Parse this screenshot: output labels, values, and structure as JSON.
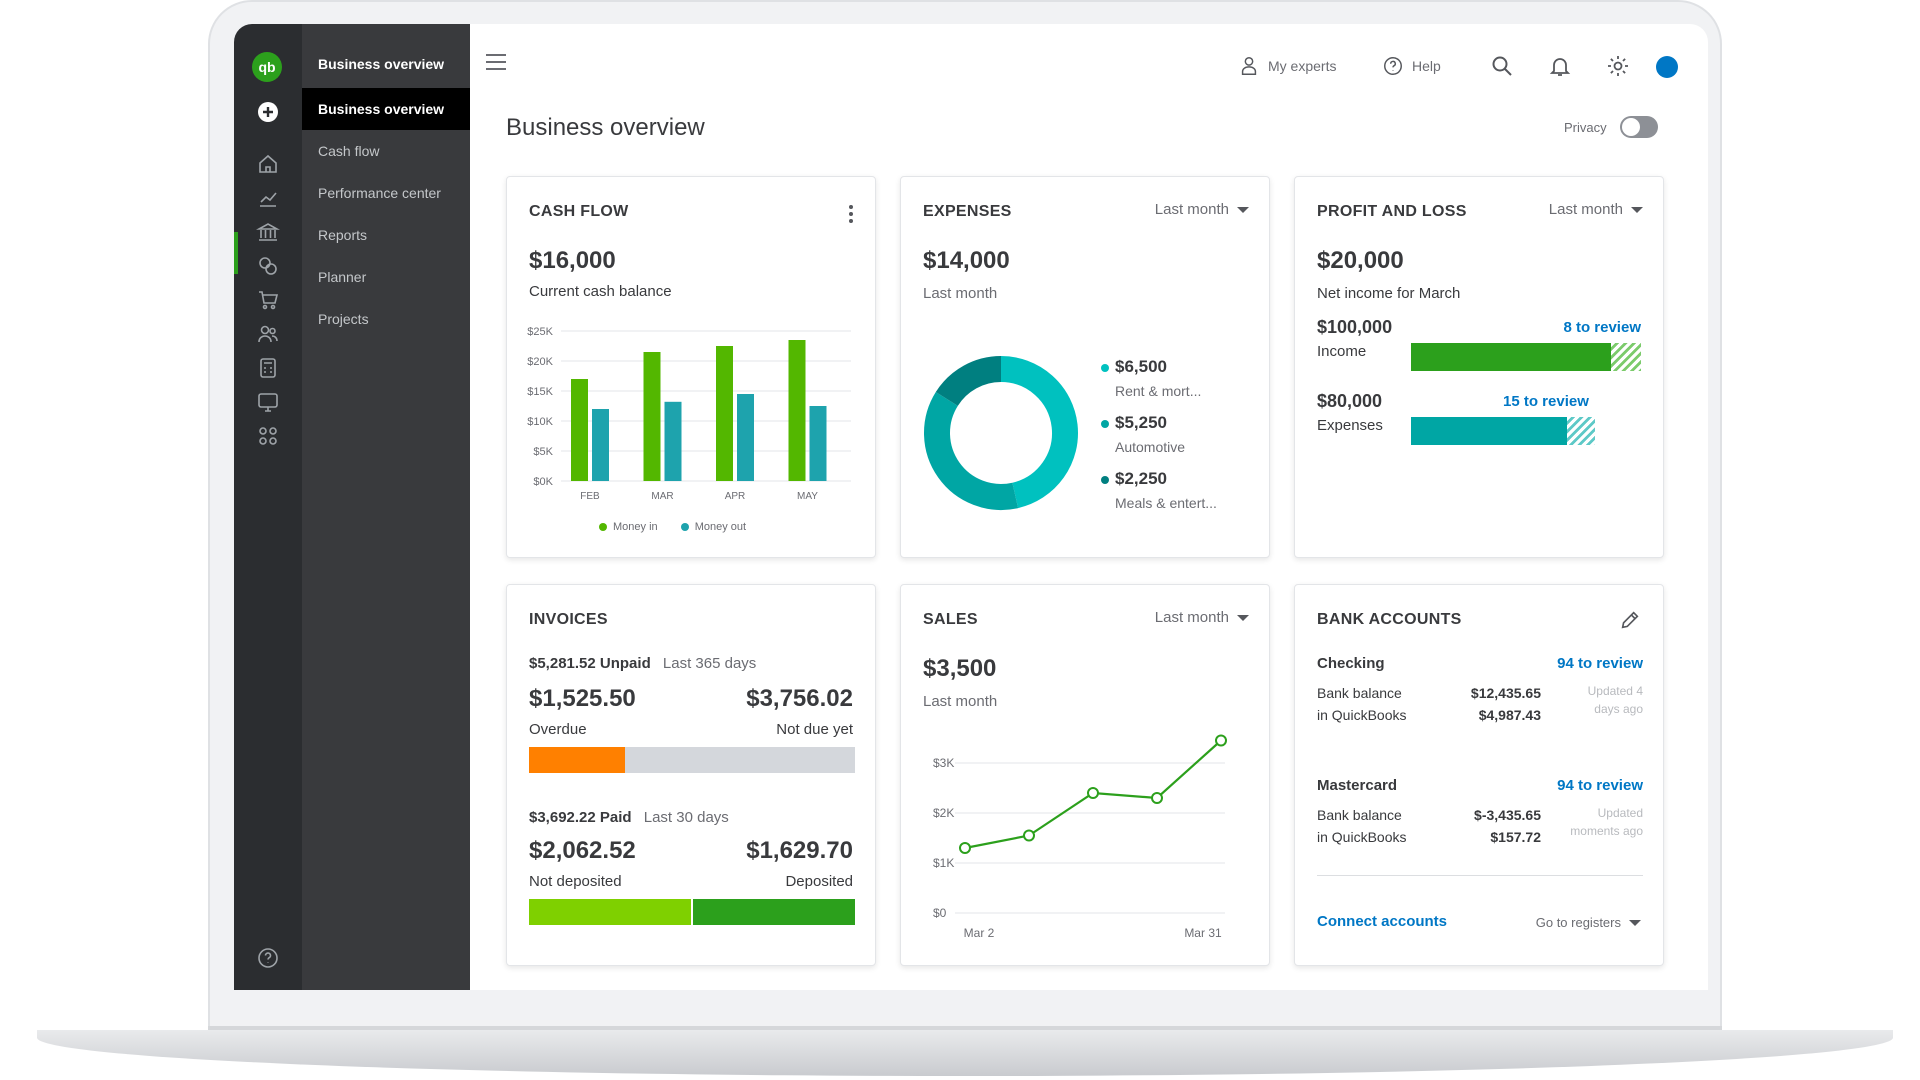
{
  "app": {
    "logo_text": "qb",
    "section_title": "Business overview",
    "menu": [
      {
        "label": "Business overview",
        "active": true
      },
      {
        "label": "Cash flow"
      },
      {
        "label": "Performance center"
      },
      {
        "label": "Reports"
      },
      {
        "label": "Planner"
      },
      {
        "label": "Projects"
      }
    ],
    "rail_icons": [
      "plus-circle-icon",
      "home-icon",
      "chart-icon",
      "bank-icon",
      "tag-icon",
      "cart-icon",
      "people-icon",
      "calculator-icon",
      "monitor-icon",
      "apps-icon",
      "help-circle-icon"
    ]
  },
  "header": {
    "my_experts": "My experts",
    "help": "Help",
    "page_title": "Business overview",
    "privacy": "Privacy"
  },
  "cards": {
    "cash_flow": {
      "title": "CASH FLOW",
      "amount": "$16,000",
      "caption": "Current cash balance",
      "legend_in": "Money in",
      "legend_out": "Money out"
    },
    "expenses": {
      "title": "EXPENSES",
      "period": "Last month",
      "amount": "$14,000",
      "caption": "Last month",
      "items": [
        {
          "amount": "$6,500",
          "label": "Rent & mort..."
        },
        {
          "amount": "$5,250",
          "label": "Automotive"
        },
        {
          "amount": "$2,250",
          "label": "Meals & entert..."
        }
      ]
    },
    "profit_loss": {
      "title": "PROFIT AND LOSS",
      "period": "Last month",
      "amount": "$20,000",
      "caption": "Net income for March",
      "income_amount": "$100,000",
      "income_label": "Income",
      "income_review": "8 to review",
      "expenses_amount": "$80,000",
      "expenses_label": "Expenses",
      "expenses_review": "15 to review"
    },
    "invoices": {
      "title": "INVOICES",
      "unpaid_amount": "$5,281.52 Unpaid",
      "unpaid_period": "Last 365 days",
      "overdue_amount": "$1,525.50",
      "overdue_label": "Overdue",
      "notdue_amount": "$3,756.02",
      "notdue_label": "Not due yet",
      "paid_amount": "$3,692.22 Paid",
      "paid_period": "Last 30 days",
      "notdep_amount": "$2,062.52",
      "notdep_label": "Not deposited",
      "dep_amount": "$1,629.70",
      "dep_label": "Deposited"
    },
    "sales": {
      "title": "SALES",
      "period": "Last month",
      "amount": "$3,500",
      "caption": "Last month"
    },
    "bank": {
      "title": "BANK ACCOUNTS",
      "accounts": [
        {
          "name": "Checking",
          "review": "94 to review",
          "bank_label": "Bank balance",
          "bank_value": "$12,435.65",
          "qb_label": "in QuickBooks",
          "qb_value": "$4,987.43",
          "updated": "Updated 4 days ago"
        },
        {
          "name": "Mastercard",
          "review": "94 to review",
          "bank_label": "Bank balance",
          "bank_value": "$-3,435.65",
          "qb_label": "in QuickBooks",
          "qb_value": "$157.72",
          "updated": "Updated moments ago"
        }
      ],
      "connect": "Connect accounts",
      "registers": "Go to registers"
    }
  },
  "chart_data": [
    {
      "type": "bar",
      "categories": [
        "FEB",
        "MAR",
        "APR",
        "MAY"
      ],
      "series": [
        {
          "name": "Money in",
          "values": [
            17000,
            21500,
            22500,
            23500
          ]
        },
        {
          "name": "Money out",
          "values": [
            12000,
            13200,
            14500,
            12500
          ]
        }
      ],
      "yticks": [
        "$25K",
        "$20K",
        "$15K",
        "$10K",
        "$5K",
        "$0K"
      ],
      "ylim": [
        0,
        25000
      ],
      "colors": {
        "in": "#53b700",
        "out": "#1ea3ad"
      }
    },
    {
      "type": "pie",
      "labels": [
        "Rent & mort...",
        "Automotive",
        "Meals & entert..."
      ],
      "values": [
        6500,
        5250,
        2250
      ],
      "colors": [
        "#00c1bf",
        "#00a6a4",
        "#007f80"
      ]
    },
    {
      "type": "line",
      "x": [
        "Mar 2",
        "",
        "",
        "",
        "Mar 31"
      ],
      "y": [
        1300,
        1550,
        2400,
        2300,
        3450
      ],
      "yticks": [
        "$3K",
        "$2K",
        "$1K",
        "$0"
      ],
      "ylim": [
        0,
        3000
      ],
      "color": "#2ca01c"
    }
  ]
}
